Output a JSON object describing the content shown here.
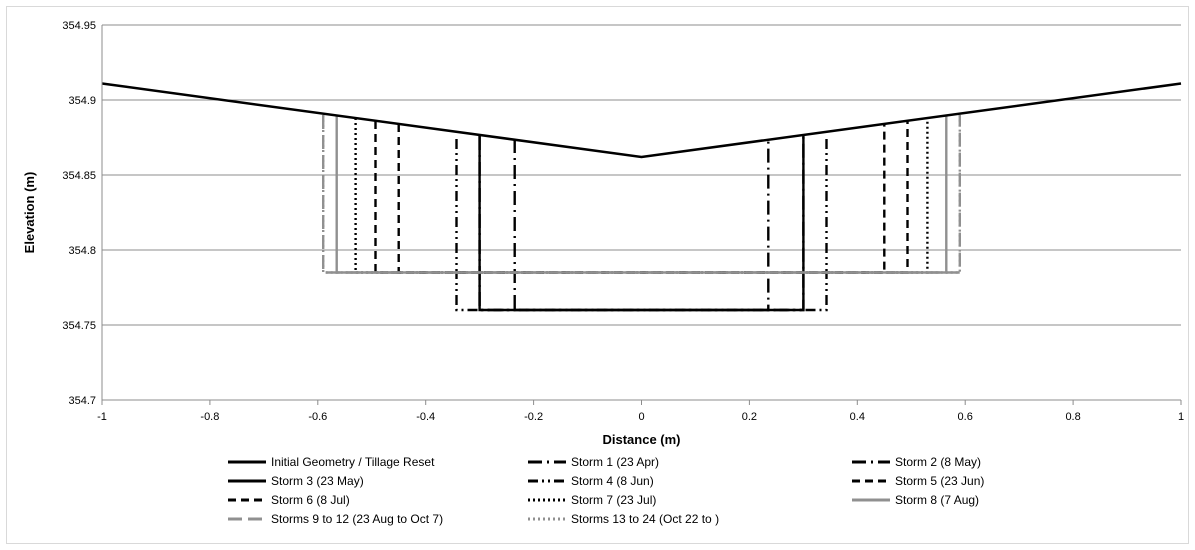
{
  "chart_data": {
    "type": "line",
    "title": "",
    "xlabel": "Distance (m)",
    "ylabel": "Elevation (m)",
    "xlim": [
      -1,
      1
    ],
    "ylim": [
      354.7,
      354.95
    ],
    "x_ticks": [
      "-1",
      "-0.8",
      "-0.6",
      "-0.4",
      "-0.2",
      "0",
      "0.2",
      "0.4",
      "0.6",
      "0.8",
      "1"
    ],
    "y_ticks": [
      "354.7",
      "354.75",
      "354.8",
      "354.85",
      "354.9",
      "354.95"
    ],
    "grid": "horizontal",
    "legend_position": "bottom",
    "series": [
      {
        "name": "Initial Geometry / Tillage Reset",
        "style": "solid",
        "color": "#000000",
        "x": [
          -1,
          0,
          1
        ],
        "y": [
          354.911,
          354.862,
          354.911
        ]
      },
      {
        "name": "Storm 1 (23 Apr)",
        "style": "longdash-dot",
        "color": "#000000",
        "x": [
          -0.235,
          -0.235,
          0.235,
          0.235
        ],
        "y": [
          354.874,
          354.76,
          354.76,
          354.874
        ]
      },
      {
        "name": "Storm 2 (8 May)",
        "style": "longdash-dot",
        "color": "#000000",
        "x": [
          -0.3,
          -0.3,
          0.3,
          0.3
        ],
        "y": [
          354.876,
          354.76,
          354.76,
          354.876
        ]
      },
      {
        "name": "Storm 3 (23 May)",
        "style": "solid",
        "color": "#000000",
        "x": [
          -0.3,
          -0.3,
          0.3,
          0.3
        ],
        "y": [
          354.876,
          354.76,
          354.76,
          354.876
        ]
      },
      {
        "name": "Storm 4 (8 Jun)",
        "style": "dash-dot-dot",
        "color": "#000000",
        "x": [
          -0.343,
          -0.343,
          -0.335,
          0.335,
          0.343,
          0.343
        ],
        "y": [
          354.874,
          354.76,
          354.76,
          354.76,
          354.76,
          354.874
        ]
      },
      {
        "name": "Storm 5 (23 Jun)",
        "style": "dash",
        "color": "#000000",
        "x": [
          -0.493,
          -0.493,
          0.493,
          0.493
        ],
        "y": [
          354.886,
          354.785,
          354.785,
          354.886
        ]
      },
      {
        "name": "Storm 6 (8 Jul)",
        "style": "dash",
        "color": "#000000",
        "x": [
          -0.45,
          -0.45,
          0.45,
          0.45
        ],
        "y": [
          354.884,
          354.785,
          354.785,
          354.884
        ]
      },
      {
        "name": "Storm 7 (23 Jul)",
        "style": "dot",
        "color": "#000000",
        "x": [
          -0.53,
          -0.53,
          0.53,
          0.53
        ],
        "y": [
          354.888,
          354.785,
          354.785,
          354.888
        ]
      },
      {
        "name": "Storm 8 (7 Aug)",
        "style": "solid",
        "color": "#909090",
        "x": [
          -0.565,
          -0.565,
          0.565,
          0.565
        ],
        "y": [
          354.889,
          354.785,
          354.785,
          354.889
        ]
      },
      {
        "name": "Storms 9 to 12 (23 Aug to Oct 7)",
        "style": "longdash",
        "color": "#909090",
        "x": [
          -0.59,
          -0.59,
          0.59,
          0.59
        ],
        "y": [
          354.89,
          354.785,
          354.785,
          354.89
        ]
      },
      {
        "name": "Storms 13 to 24 (Oct 22 to )",
        "style": "dot",
        "color": "#909090",
        "x": [
          -0.59,
          -0.59,
          0.59,
          0.59
        ],
        "y": [
          354.89,
          354.785,
          354.785,
          354.89
        ]
      }
    ]
  }
}
